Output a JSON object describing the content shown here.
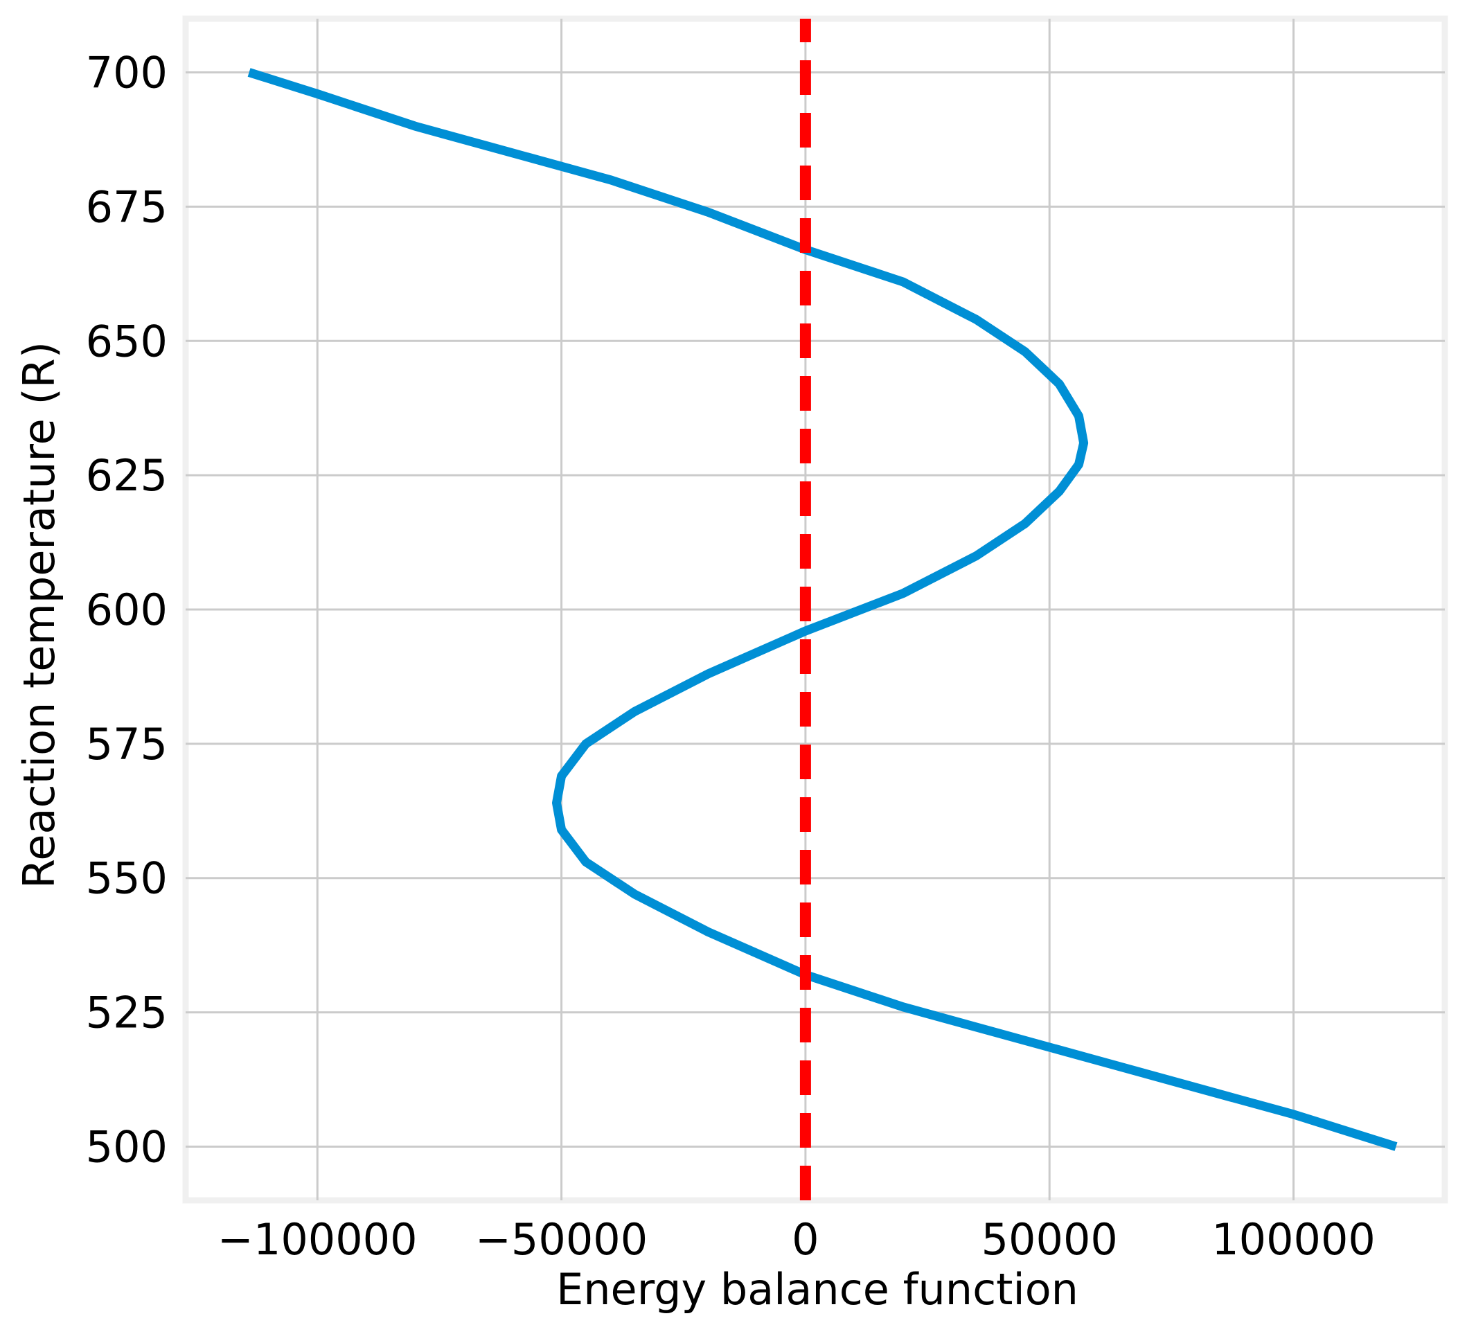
{
  "chart_data": {
    "type": "line",
    "xlabel": "Energy balance function",
    "ylabel": "Reaction temperature (R)",
    "xlim": [
      -127000,
      131000
    ],
    "ylim": [
      490,
      710
    ],
    "xticks": [
      -100000,
      -50000,
      0,
      50000,
      100000
    ],
    "xtick_labels": [
      "−100000",
      "−50000",
      "0",
      "50000",
      "100000"
    ],
    "yticks": [
      500,
      525,
      550,
      575,
      600,
      625,
      650,
      675,
      700
    ],
    "ytick_labels": [
      "500",
      "525",
      "550",
      "575",
      "600",
      "625",
      "650",
      "675",
      "700"
    ],
    "grid": true,
    "colors": {
      "series": "#008fd5",
      "reference": "#ff0000",
      "grid": "#cbcbcb",
      "frame": "#f0f0f0"
    },
    "series": [
      {
        "style": "solid",
        "x": [
          120999,
          100000,
          80000,
          60000,
          40000,
          20000,
          0,
          -20000,
          -35000,
          -45000,
          -50000,
          -51000,
          -50000,
          -45000,
          -35000,
          -20000,
          0,
          20000,
          35000,
          45000,
          52000,
          56000,
          57000,
          56000,
          52000,
          45000,
          35000,
          20000,
          0,
          -20000,
          -40000,
          -60000,
          -80000,
          -100000,
          -114000
        ],
        "y": [
          500,
          506,
          511,
          516,
          521,
          526,
          532,
          540,
          547,
          553,
          559,
          564,
          569,
          575,
          581,
          588,
          596,
          603,
          610,
          616,
          622,
          627,
          631,
          636,
          642,
          648,
          654,
          661,
          667,
          674,
          680,
          685,
          690,
          696,
          700
        ]
      },
      {
        "style": "dashed",
        "x": [
          0,
          0
        ],
        "y": [
          490,
          710
        ]
      }
    ]
  }
}
